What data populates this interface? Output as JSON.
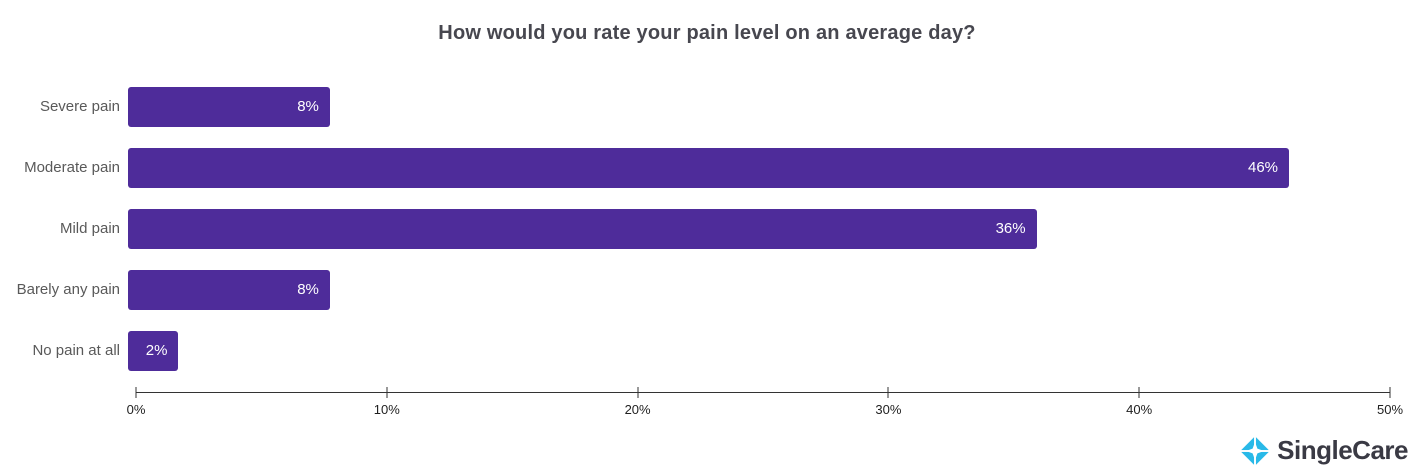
{
  "chart_data": {
    "type": "bar",
    "orientation": "horizontal",
    "title": "How would you rate your pain level on an average day?",
    "categories": [
      "Severe pain",
      "Moderate pain",
      "Mild pain",
      "Barely any pain",
      "No pain at all"
    ],
    "values": [
      8,
      46,
      36,
      8,
      2
    ],
    "value_labels": [
      "8%",
      "46%",
      "36%",
      "8%",
      "2%"
    ],
    "xlabel": "",
    "ylabel": "",
    "xlim": [
      0,
      50
    ],
    "x_ticks": [
      0,
      10,
      20,
      30,
      40,
      50
    ],
    "x_tick_labels": [
      "0%",
      "10%",
      "20%",
      "30%",
      "40%",
      "50%"
    ],
    "grid": false,
    "legend": false,
    "bar_color": "#4E2C9A",
    "value_label_color": "#FFFFFF",
    "title_color": "#47474F",
    "category_label_color": "#595959",
    "axis_color": "#333333"
  },
  "branding": {
    "logo_text": "SingleCare",
    "logo_icon": "singlecare-diamond-icon",
    "logo_icon_color": "#29B9E8",
    "logo_text_color": "#3A3A44"
  }
}
